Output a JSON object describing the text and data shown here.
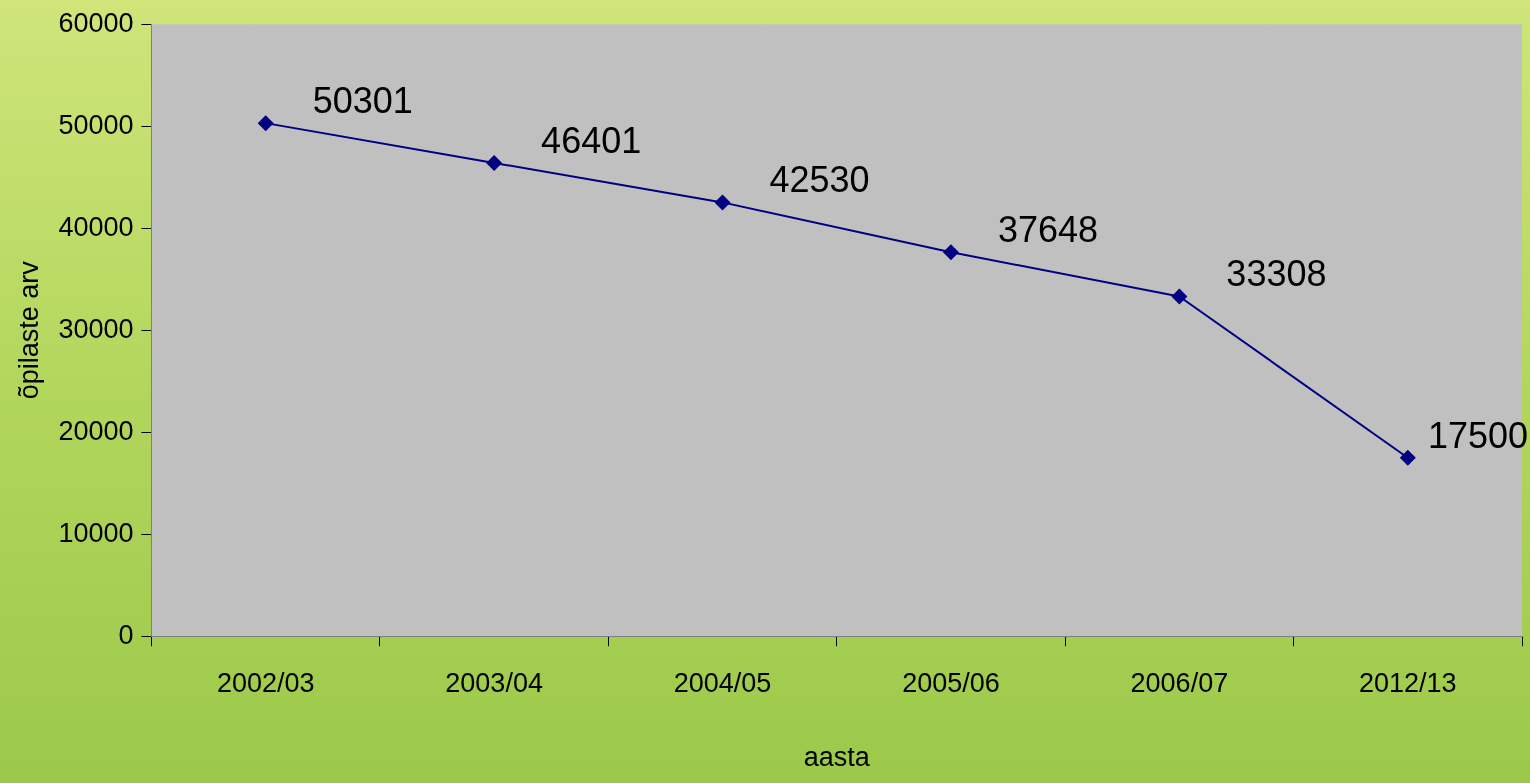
{
  "chart_data": {
    "type": "line",
    "xlabel": "aasta",
    "ylabel": "õpilaste arv",
    "categories": [
      "2002/03",
      "2003/04",
      "2004/05",
      "2005/06",
      "2006/07",
      "2012/13"
    ],
    "series": [
      {
        "color": "#000080",
        "values": [
          50301,
          46401,
          42530,
          37648,
          33308,
          17500
        ]
      }
    ],
    "ylim": [
      0,
      60000
    ],
    "yticks": [
      0,
      10000,
      20000,
      30000,
      40000,
      50000,
      60000
    ],
    "grid": false,
    "legend": false,
    "marker": "diamond",
    "line_style": "solid",
    "data_labels": true
  }
}
